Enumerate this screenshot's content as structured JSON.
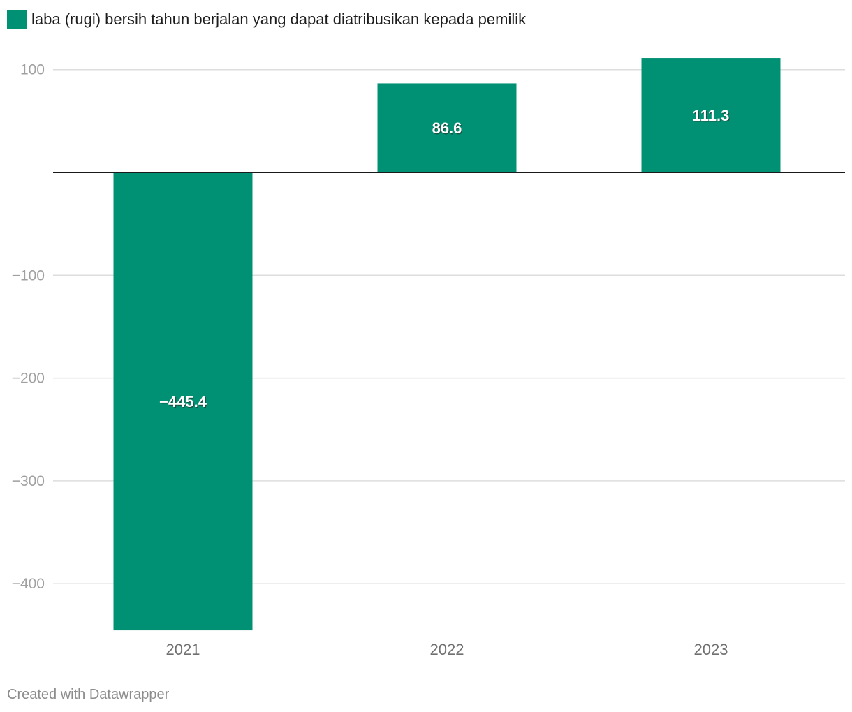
{
  "legend": {
    "label": "laba (rugi) bersih tahun berjalan yang dapat diatribusikan kepada pemilik",
    "color": "#009175"
  },
  "footer": {
    "credit": "Created with Datawrapper"
  },
  "chart_data": {
    "type": "bar",
    "categories": [
      "2021",
      "2022",
      "2023"
    ],
    "series": [
      {
        "name": "laba (rugi) bersih tahun berjalan yang dapat diatribusikan kepada pemilik",
        "values": [
          -445.4,
          86.6,
          111.3
        ],
        "color": "#009175"
      }
    ],
    "data_labels": [
      "−445.4",
      "86.6",
      "111.3"
    ],
    "yticks": [
      100,
      -100,
      -200,
      -300,
      -400
    ],
    "ytick_labels": [
      "100",
      "−100",
      "−200",
      "−300",
      "−400"
    ],
    "ylim": [
      -445.4,
      111.3
    ],
    "grid": true,
    "legend_position": "top-left",
    "title": "",
    "xlabel": "",
    "ylabel": ""
  }
}
